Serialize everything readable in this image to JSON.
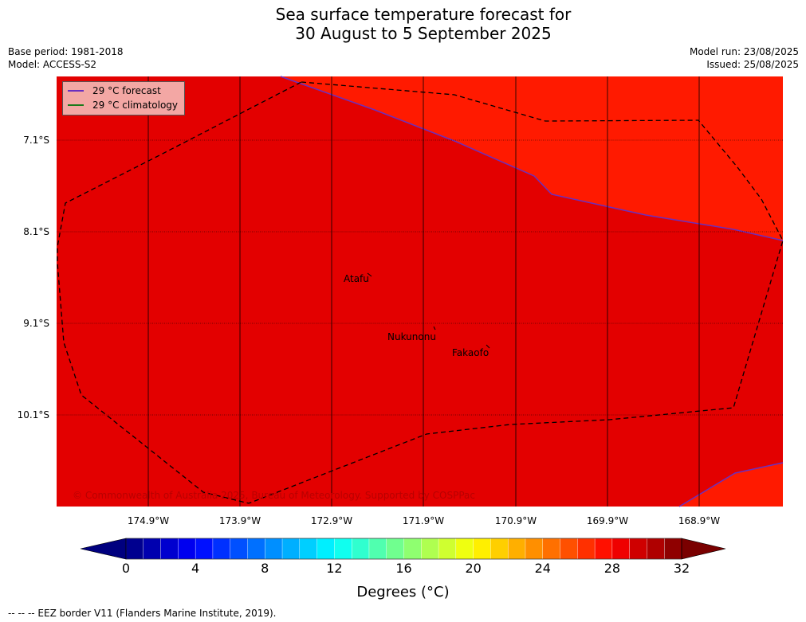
{
  "title": {
    "line1": "Sea surface temperature forecast for",
    "line2": "30 August to 5 September 2025"
  },
  "meta": {
    "base_period": "Base period: 1981-2018",
    "model": "Model: ACCESS-S2",
    "model_run": "Model run: 23/08/2025",
    "issued": "Issued: 25/08/2025"
  },
  "colors": {
    "sea_main": "#e30000",
    "sea_warm": "#ff1a00",
    "forecast_line": "#6a2fbf",
    "climatology_line": "#1a7a1a",
    "eez_line": "#000000",
    "legend_bg": "#f3a7a4"
  },
  "legend": {
    "forecast": "29 °C  forecast",
    "climatology": "29 °C  climatology"
  },
  "axes": {
    "lat_labels": [
      "7.1°S",
      "8.1°S",
      "9.1°S",
      "10.1°S"
    ],
    "lon_labels": [
      "174.9°W",
      "173.9°W",
      "172.9°W",
      "171.9°W",
      "170.9°W",
      "169.9°W",
      "168.9°W"
    ]
  },
  "places": {
    "atafu": "Atafu",
    "nukunonu": "Nukunonu",
    "fakaofo": "Fakaofo"
  },
  "copyright": "© Commonwealth of Australia 2025, Bureau of Meteorology. Supported by COSPPac",
  "colorbar": {
    "min": 0,
    "max": 32,
    "step": 1,
    "tick_labels": [
      "0",
      "4",
      "8",
      "12",
      "16",
      "20",
      "24",
      "28",
      "32"
    ],
    "title": "Degrees (°C)"
  },
  "footer": "--  --  -- EEZ border V11 (Flanders Marine Institute, 2019)."
}
